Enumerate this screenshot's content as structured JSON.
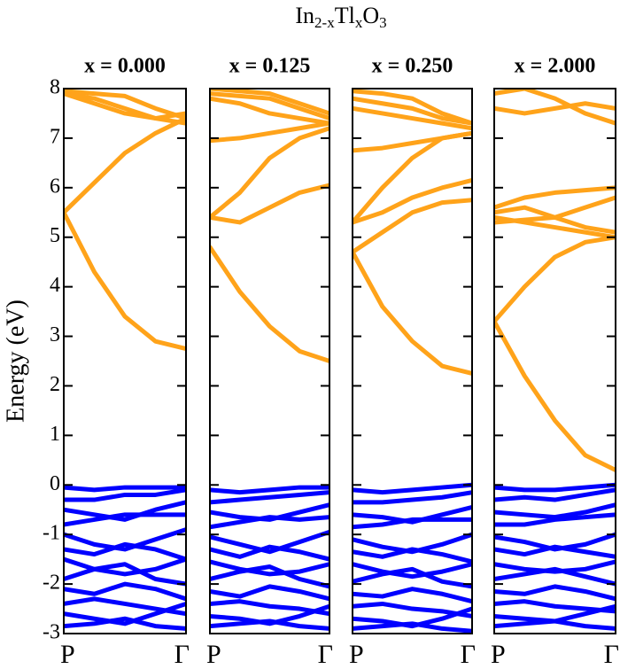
{
  "title_parts": [
    {
      "text": "In"
    },
    {
      "text": "2-x",
      "sub": true
    },
    {
      "text": "Tl"
    },
    {
      "text": "x",
      "sub": true
    },
    {
      "text": "O"
    },
    {
      "text": "3",
      "sub": true
    }
  ],
  "chart_data": [
    {
      "type": "line",
      "subtitle": "x = 0.000",
      "ylabel": "Energy (eV)",
      "x": [
        0,
        0.25,
        0.5,
        0.75,
        1
      ],
      "xlim": [
        0,
        1
      ],
      "xticks": [
        {
          "value": 0,
          "label": "P"
        },
        {
          "value": 1,
          "label": "Γ"
        }
      ],
      "ylim": [
        -3,
        8
      ],
      "yticks": [
        -3,
        -2,
        -1,
        0,
        1,
        2,
        3,
        4,
        5,
        6,
        7,
        8
      ],
      "series": [
        {
          "color": "#ffa31a",
          "values": [
            5.5,
            4.3,
            3.4,
            2.9,
            2.75
          ]
        },
        {
          "color": "#ffa31a",
          "values": [
            5.5,
            6.1,
            6.7,
            7.1,
            7.4
          ]
        },
        {
          "color": "#ffa31a",
          "values": [
            7.95,
            7.9,
            7.85,
            7.6,
            7.4
          ]
        },
        {
          "color": "#ffa31a",
          "values": [
            7.9,
            7.8,
            7.6,
            7.4,
            7.3
          ]
        },
        {
          "color": "#ffa31a",
          "values": [
            7.9,
            7.7,
            7.5,
            7.4,
            7.5
          ]
        },
        {
          "color": "#0000ff",
          "values": [
            -0.05,
            -0.1,
            -0.05,
            -0.05,
            -0.05
          ]
        },
        {
          "color": "#0000ff",
          "values": [
            -0.3,
            -0.3,
            -0.2,
            -0.2,
            -0.1
          ]
        },
        {
          "color": "#0000ff",
          "values": [
            -0.5,
            -0.6,
            -0.7,
            -0.5,
            -0.35
          ]
        },
        {
          "color": "#0000ff",
          "values": [
            -0.8,
            -0.7,
            -0.6,
            -0.6,
            -0.6
          ]
        },
        {
          "color": "#0000ff",
          "values": [
            -1.0,
            -1.2,
            -1.3,
            -1.1,
            -0.9
          ]
        },
        {
          "color": "#0000ff",
          "values": [
            -1.3,
            -1.4,
            -1.2,
            -1.3,
            -1.5
          ]
        },
        {
          "color": "#0000ff",
          "values": [
            -1.5,
            -1.7,
            -1.8,
            -1.7,
            -1.5
          ]
        },
        {
          "color": "#0000ff",
          "values": [
            -1.9,
            -1.7,
            -1.6,
            -1.9,
            -2.0
          ]
        },
        {
          "color": "#0000ff",
          "values": [
            -2.1,
            -2.2,
            -2.0,
            -2.1,
            -2.3
          ]
        },
        {
          "color": "#0000ff",
          "values": [
            -2.4,
            -2.3,
            -2.4,
            -2.5,
            -2.6
          ]
        },
        {
          "color": "#0000ff",
          "values": [
            -2.6,
            -2.7,
            -2.8,
            -2.6,
            -2.4
          ]
        },
        {
          "color": "#0000ff",
          "values": [
            -2.85,
            -2.8,
            -2.7,
            -2.85,
            -2.9
          ]
        }
      ]
    },
    {
      "type": "line",
      "subtitle": "x = 0.125",
      "x": [
        0,
        0.25,
        0.5,
        0.75,
        1
      ],
      "xlim": [
        0,
        1
      ],
      "xticks": [
        {
          "value": 0,
          "label": "P"
        },
        {
          "value": 1,
          "label": "Γ"
        }
      ],
      "ylim": [
        -3,
        8
      ],
      "yticks": [
        -3,
        -2,
        -1,
        0,
        1,
        2,
        3,
        4,
        5,
        6,
        7,
        8
      ],
      "series": [
        {
          "color": "#ffa31a",
          "values": [
            4.8,
            3.9,
            3.2,
            2.7,
            2.5
          ]
        },
        {
          "color": "#ffa31a",
          "values": [
            5.4,
            5.3,
            5.6,
            5.9,
            6.05
          ]
        },
        {
          "color": "#ffa31a",
          "values": [
            5.4,
            5.9,
            6.6,
            7.0,
            7.2
          ]
        },
        {
          "color": "#ffa31a",
          "values": [
            6.95,
            7.0,
            7.1,
            7.2,
            7.3
          ]
        },
        {
          "color": "#ffa31a",
          "values": [
            7.8,
            7.7,
            7.5,
            7.4,
            7.3
          ]
        },
        {
          "color": "#ffa31a",
          "values": [
            7.9,
            7.85,
            7.8,
            7.6,
            7.4
          ]
        },
        {
          "color": "#ffa31a",
          "values": [
            8.0,
            7.95,
            7.9,
            7.7,
            7.5
          ]
        },
        {
          "color": "#0000ff",
          "values": [
            -0.1,
            -0.15,
            -0.1,
            -0.05,
            -0.05
          ]
        },
        {
          "color": "#0000ff",
          "values": [
            -0.35,
            -0.3,
            -0.25,
            -0.2,
            -0.15
          ]
        },
        {
          "color": "#0000ff",
          "values": [
            -0.55,
            -0.65,
            -0.7,
            -0.55,
            -0.4
          ]
        },
        {
          "color": "#0000ff",
          "values": [
            -0.85,
            -0.75,
            -0.65,
            -0.7,
            -0.65
          ]
        },
        {
          "color": "#0000ff",
          "values": [
            -1.05,
            -1.2,
            -1.35,
            -1.15,
            -0.95
          ]
        },
        {
          "color": "#0000ff",
          "values": [
            -1.3,
            -1.45,
            -1.25,
            -1.35,
            -1.5
          ]
        },
        {
          "color": "#0000ff",
          "values": [
            -1.55,
            -1.7,
            -1.8,
            -1.75,
            -1.6
          ]
        },
        {
          "color": "#0000ff",
          "values": [
            -1.9,
            -1.75,
            -1.65,
            -1.9,
            -2.05
          ]
        },
        {
          "color": "#0000ff",
          "values": [
            -2.15,
            -2.25,
            -2.05,
            -2.15,
            -2.3
          ]
        },
        {
          "color": "#0000ff",
          "values": [
            -2.4,
            -2.35,
            -2.45,
            -2.5,
            -2.6
          ]
        },
        {
          "color": "#0000ff",
          "values": [
            -2.65,
            -2.7,
            -2.8,
            -2.65,
            -2.45
          ]
        },
        {
          "color": "#0000ff",
          "values": [
            -2.85,
            -2.8,
            -2.75,
            -2.85,
            -2.9
          ]
        }
      ]
    },
    {
      "type": "line",
      "subtitle": "x = 0.250",
      "x": [
        0,
        0.25,
        0.5,
        0.75,
        1
      ],
      "xlim": [
        0,
        1
      ],
      "xticks": [
        {
          "value": 0,
          "label": "P"
        },
        {
          "value": 1,
          "label": "Γ"
        }
      ],
      "ylim": [
        -3,
        8
      ],
      "yticks": [
        -3,
        -2,
        -1,
        0,
        1,
        2,
        3,
        4,
        5,
        6,
        7,
        8
      ],
      "series": [
        {
          "color": "#ffa31a",
          "values": [
            4.7,
            3.6,
            2.9,
            2.4,
            2.25
          ]
        },
        {
          "color": "#ffa31a",
          "values": [
            4.7,
            5.1,
            5.5,
            5.7,
            5.75
          ]
        },
        {
          "color": "#ffa31a",
          "values": [
            5.3,
            5.5,
            5.8,
            6.0,
            6.15
          ]
        },
        {
          "color": "#ffa31a",
          "values": [
            5.3,
            6.0,
            6.6,
            7.0,
            7.1
          ]
        },
        {
          "color": "#ffa31a",
          "values": [
            6.75,
            6.8,
            6.9,
            7.0,
            7.1
          ]
        },
        {
          "color": "#ffa31a",
          "values": [
            7.6,
            7.5,
            7.4,
            7.3,
            7.2
          ]
        },
        {
          "color": "#ffa31a",
          "values": [
            7.8,
            7.7,
            7.6,
            7.4,
            7.3
          ]
        },
        {
          "color": "#ffa31a",
          "values": [
            7.95,
            7.9,
            7.8,
            7.5,
            7.3
          ]
        },
        {
          "color": "#0000ff",
          "values": [
            -0.1,
            -0.15,
            -0.1,
            -0.05,
            0.0
          ]
        },
        {
          "color": "#0000ff",
          "values": [
            -0.35,
            -0.35,
            -0.3,
            -0.25,
            -0.15
          ]
        },
        {
          "color": "#0000ff",
          "values": [
            -0.6,
            -0.65,
            -0.75,
            -0.6,
            -0.45
          ]
        },
        {
          "color": "#0000ff",
          "values": [
            -0.85,
            -0.8,
            -0.7,
            -0.7,
            -0.7
          ]
        },
        {
          "color": "#0000ff",
          "values": [
            -1.1,
            -1.25,
            -1.35,
            -1.2,
            -1.0
          ]
        },
        {
          "color": "#0000ff",
          "values": [
            -1.35,
            -1.45,
            -1.3,
            -1.4,
            -1.55
          ]
        },
        {
          "color": "#0000ff",
          "values": [
            -1.6,
            -1.75,
            -1.85,
            -1.75,
            -1.6
          ]
        },
        {
          "color": "#0000ff",
          "values": [
            -1.95,
            -1.8,
            -1.7,
            -1.95,
            -2.05
          ]
        },
        {
          "color": "#0000ff",
          "values": [
            -2.2,
            -2.25,
            -2.1,
            -2.2,
            -2.35
          ]
        },
        {
          "color": "#0000ff",
          "values": [
            -2.45,
            -2.4,
            -2.5,
            -2.55,
            -2.65
          ]
        },
        {
          "color": "#0000ff",
          "values": [
            -2.7,
            -2.75,
            -2.85,
            -2.7,
            -2.5
          ]
        },
        {
          "color": "#0000ff",
          "values": [
            -2.9,
            -2.85,
            -2.8,
            -2.9,
            -2.95
          ]
        }
      ]
    },
    {
      "type": "line",
      "subtitle": "x = 2.000",
      "x": [
        0,
        0.25,
        0.5,
        0.75,
        1
      ],
      "xlim": [
        0,
        1
      ],
      "xticks": [
        {
          "value": 0,
          "label": "P"
        },
        {
          "value": 1,
          "label": "Γ"
        }
      ],
      "ylim": [
        -3,
        8
      ],
      "yticks": [
        -3,
        -2,
        -1,
        0,
        1,
        2,
        3,
        4,
        5,
        6,
        7,
        8
      ],
      "series": [
        {
          "color": "#ffa31a",
          "values": [
            3.3,
            2.2,
            1.3,
            0.6,
            0.3
          ]
        },
        {
          "color": "#ffa31a",
          "values": [
            3.3,
            4.0,
            4.6,
            4.9,
            5.0
          ]
        },
        {
          "color": "#ffa31a",
          "values": [
            5.4,
            5.3,
            5.2,
            5.1,
            5.0
          ]
        },
        {
          "color": "#ffa31a",
          "values": [
            5.5,
            5.6,
            5.4,
            5.2,
            5.1
          ]
        },
        {
          "color": "#ffa31a",
          "values": [
            5.6,
            5.8,
            5.9,
            5.95,
            6.0
          ]
        },
        {
          "color": "#ffa31a",
          "values": [
            5.3,
            5.35,
            5.4,
            5.6,
            5.8
          ]
        },
        {
          "color": "#ffa31a",
          "values": [
            7.6,
            7.5,
            7.6,
            7.7,
            7.6
          ]
        },
        {
          "color": "#ffa31a",
          "values": [
            7.9,
            8.0,
            7.8,
            7.5,
            7.3
          ]
        },
        {
          "color": "#0000ff",
          "values": [
            -0.05,
            -0.1,
            -0.1,
            -0.05,
            0.0
          ]
        },
        {
          "color": "#0000ff",
          "values": [
            -0.3,
            -0.25,
            -0.3,
            -0.2,
            -0.1
          ]
        },
        {
          "color": "#0000ff",
          "values": [
            -0.55,
            -0.6,
            -0.65,
            -0.55,
            -0.4
          ]
        },
        {
          "color": "#0000ff",
          "values": [
            -0.8,
            -0.8,
            -0.7,
            -0.65,
            -0.6
          ]
        },
        {
          "color": "#0000ff",
          "values": [
            -1.05,
            -1.15,
            -1.3,
            -1.2,
            -1.0
          ]
        },
        {
          "color": "#0000ff",
          "values": [
            -1.3,
            -1.4,
            -1.25,
            -1.35,
            -1.45
          ]
        },
        {
          "color": "#0000ff",
          "values": [
            -1.6,
            -1.7,
            -1.75,
            -1.7,
            -1.55
          ]
        },
        {
          "color": "#0000ff",
          "values": [
            -1.9,
            -1.8,
            -1.7,
            -1.85,
            -2.0
          ]
        },
        {
          "color": "#0000ff",
          "values": [
            -2.15,
            -2.2,
            -2.05,
            -2.15,
            -2.3
          ]
        },
        {
          "color": "#0000ff",
          "values": [
            -2.4,
            -2.35,
            -2.45,
            -2.5,
            -2.55
          ]
        },
        {
          "color": "#0000ff",
          "values": [
            -2.65,
            -2.7,
            -2.75,
            -2.6,
            -2.45
          ]
        },
        {
          "color": "#0000ff",
          "values": [
            -2.85,
            -2.8,
            -2.75,
            -2.85,
            -2.9
          ]
        }
      ]
    }
  ]
}
